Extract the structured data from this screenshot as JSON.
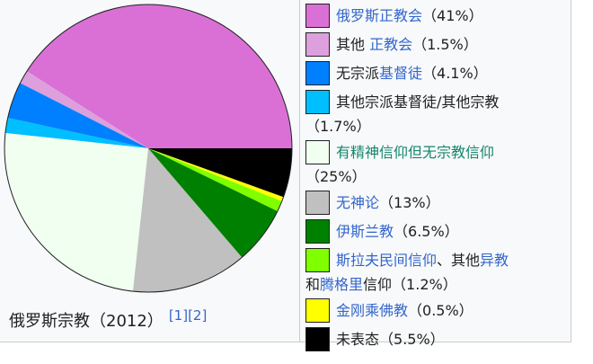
{
  "chart_data": {
    "type": "pie",
    "title": "俄罗斯宗教（2012）",
    "slices": [
      {
        "label": "俄罗斯正教会",
        "value": 41,
        "color": "#da70d6"
      },
      {
        "label": "其他 正教会",
        "value": 1.5,
        "color": "#dda0dd"
      },
      {
        "label": "无宗派基督徒",
        "value": 4.1,
        "color": "#0080ff"
      },
      {
        "label": "其他宗派基督徒/其他宗教",
        "value": 1.7,
        "color": "#00bfff"
      },
      {
        "label": "有精神信仰但无宗教信仰",
        "value": 25,
        "color": "#f0fff0"
      },
      {
        "label": "无神论",
        "value": 13,
        "color": "#c0c0c0"
      },
      {
        "label": "伊斯兰教",
        "value": 6.5,
        "color": "#008000"
      },
      {
        "label": "斯拉夫民间信仰、其他异教和腾格里信仰",
        "value": 1.2,
        "color": "#7fff00"
      },
      {
        "label": "金刚乘佛教",
        "value": 0.5,
        "color": "#ffff00"
      },
      {
        "label": "未表态",
        "value": 5.5,
        "color": "#000000"
      }
    ]
  },
  "caption": {
    "title": "俄罗斯宗教（2012）",
    "ref1": "[1]",
    "ref2": "[2]"
  },
  "legend": {
    "r1": {
      "link": "俄罗斯正教会",
      "pct": "（41%）"
    },
    "r2": {
      "text": "其他 ",
      "link": "正教会",
      "pct": "（1.5%）"
    },
    "r3": {
      "text": "无宗派",
      "link": "基督徒",
      "pct": "（4.1%）"
    },
    "r4": {
      "line1": "其他宗派基督徒/其他宗教",
      "pct": "（1.7%）"
    },
    "r5": {
      "link": "有精神信仰但无宗教信仰",
      "pct": "（25%）"
    },
    "r6": {
      "link": "无神论",
      "pct": "（13%）"
    },
    "r7": {
      "link": "伊斯兰教",
      "pct": "（6.5%）"
    },
    "r8": {
      "link1": "斯拉夫民间信仰",
      "sep": "、其他",
      "link2": "异教",
      "text": "和",
      "link3": "腾格里",
      "text2": "信仰",
      "pct": "（1.2%）"
    },
    "r9": {
      "link": "金刚乘佛教",
      "pct": "（0.5%）"
    },
    "r10": {
      "text": "未表态",
      "pct": "（5.5%）"
    }
  }
}
